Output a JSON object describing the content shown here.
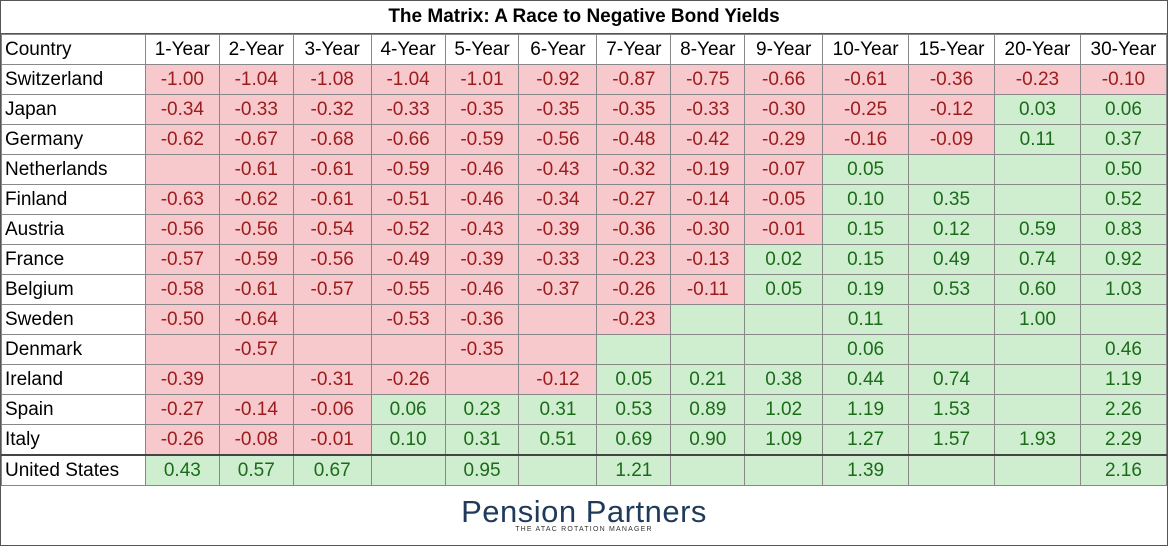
{
  "title": "The Matrix: A Race to Negative Bond Yields",
  "logo": {
    "name": "Pension Partners",
    "tagline": "THE ATAC ROTATION MANAGER"
  },
  "colors": {
    "negative_fill": "#f7c8cc",
    "negative_text": "#9b1c1c",
    "positive_fill": "#cfeecf",
    "positive_text": "#1b6b1b"
  },
  "chart_data": {
    "type": "table",
    "title": "The Matrix: A Race to Negative Bond Yields",
    "header": "Country",
    "columns": [
      "1-Year",
      "2-Year",
      "3-Year",
      "4-Year",
      "5-Year",
      "6-Year",
      "7-Year",
      "8-Year",
      "9-Year",
      "10-Year",
      "15-Year",
      "20-Year",
      "30-Year"
    ],
    "rows": [
      {
        "country": "Switzerland",
        "values": [
          "-1.00",
          "-1.04",
          "-1.08",
          "-1.04",
          "-1.01",
          "-0.92",
          "-0.87",
          "-0.75",
          "-0.66",
          "-0.61",
          "-0.36",
          "-0.23",
          "-0.10"
        ]
      },
      {
        "country": "Japan",
        "values": [
          "-0.34",
          "-0.33",
          "-0.32",
          "-0.33",
          "-0.35",
          "-0.35",
          "-0.35",
          "-0.33",
          "-0.30",
          "-0.25",
          "-0.12",
          "0.03",
          "0.06"
        ]
      },
      {
        "country": "Germany",
        "values": [
          "-0.62",
          "-0.67",
          "-0.68",
          "-0.66",
          "-0.59",
          "-0.56",
          "-0.48",
          "-0.42",
          "-0.29",
          "-0.16",
          "-0.09",
          "0.11",
          "0.37"
        ]
      },
      {
        "country": "Netherlands",
        "values": [
          null,
          "-0.61",
          "-0.61",
          "-0.59",
          "-0.46",
          "-0.43",
          "-0.32",
          "-0.19",
          "-0.07",
          "0.05",
          null,
          null,
          "0.50"
        ]
      },
      {
        "country": "Finland",
        "values": [
          "-0.63",
          "-0.62",
          "-0.61",
          "-0.51",
          "-0.46",
          "-0.34",
          "-0.27",
          "-0.14",
          "-0.05",
          "0.10",
          "0.35",
          null,
          "0.52"
        ]
      },
      {
        "country": "Austria",
        "values": [
          "-0.56",
          "-0.56",
          "-0.54",
          "-0.52",
          "-0.43",
          "-0.39",
          "-0.36",
          "-0.30",
          "-0.01",
          "0.15",
          "0.12",
          "0.59",
          "0.83"
        ]
      },
      {
        "country": "France",
        "values": [
          "-0.57",
          "-0.59",
          "-0.56",
          "-0.49",
          "-0.39",
          "-0.33",
          "-0.23",
          "-0.13",
          "0.02",
          "0.15",
          "0.49",
          "0.74",
          "0.92"
        ]
      },
      {
        "country": "Belgium",
        "values": [
          "-0.58",
          "-0.61",
          "-0.57",
          "-0.55",
          "-0.46",
          "-0.37",
          "-0.26",
          "-0.11",
          "0.05",
          "0.19",
          "0.53",
          "0.60",
          "1.03"
        ]
      },
      {
        "country": "Sweden",
        "values": [
          "-0.50",
          "-0.64",
          null,
          "-0.53",
          "-0.36",
          null,
          "-0.23",
          null,
          null,
          "0.11",
          null,
          "1.00",
          null
        ]
      },
      {
        "country": "Denmark",
        "values": [
          null,
          "-0.57",
          null,
          null,
          "-0.35",
          null,
          null,
          null,
          null,
          "0.06",
          null,
          null,
          "0.46"
        ]
      },
      {
        "country": "Ireland",
        "values": [
          "-0.39",
          null,
          "-0.31",
          "-0.26",
          null,
          "-0.12",
          "0.05",
          "0.21",
          "0.38",
          "0.44",
          "0.74",
          null,
          "1.19"
        ]
      },
      {
        "country": "Spain",
        "values": [
          "-0.27",
          "-0.14",
          "-0.06",
          "0.06",
          "0.23",
          "0.31",
          "0.53",
          "0.89",
          "1.02",
          "1.19",
          "1.53",
          null,
          "2.26"
        ]
      },
      {
        "country": "Italy",
        "values": [
          "-0.26",
          "-0.08",
          "-0.01",
          "0.10",
          "0.31",
          "0.51",
          "0.69",
          "0.90",
          "1.09",
          "1.27",
          "1.57",
          "1.93",
          "2.29"
        ]
      },
      {
        "country": "United States",
        "values": [
          "0.43",
          "0.57",
          "0.67",
          null,
          "0.95",
          null,
          "1.21",
          null,
          null,
          "1.39",
          null,
          null,
          "2.16"
        ]
      }
    ],
    "blank_cell_fill": [
      [
        null,
        null,
        null,
        null,
        null,
        null,
        null,
        null,
        null,
        null,
        null,
        null,
        null
      ],
      [
        null,
        null,
        null,
        null,
        null,
        null,
        null,
        null,
        null,
        null,
        null,
        null,
        null
      ],
      [
        null,
        null,
        null,
        null,
        null,
        null,
        null,
        null,
        null,
        null,
        null,
        null,
        null
      ],
      [
        "neg",
        null,
        null,
        null,
        null,
        null,
        null,
        null,
        null,
        null,
        "pos",
        "pos",
        null
      ],
      [
        null,
        null,
        null,
        null,
        null,
        null,
        null,
        null,
        null,
        null,
        null,
        "pos",
        null
      ],
      [
        null,
        null,
        null,
        null,
        null,
        null,
        null,
        null,
        null,
        null,
        null,
        null,
        null
      ],
      [
        null,
        null,
        null,
        null,
        null,
        null,
        null,
        null,
        null,
        null,
        null,
        null,
        null
      ],
      [
        null,
        null,
        null,
        null,
        null,
        null,
        null,
        null,
        null,
        null,
        null,
        null,
        null
      ],
      [
        null,
        null,
        "neg",
        null,
        null,
        "neg",
        null,
        "pos",
        "pos",
        null,
        "pos",
        null,
        "pos"
      ],
      [
        "neg",
        null,
        "neg",
        "neg",
        null,
        "neg",
        "pos",
        "pos",
        "pos",
        null,
        "pos",
        "pos",
        null
      ],
      [
        null,
        "neg",
        null,
        null,
        "neg",
        null,
        null,
        null,
        null,
        null,
        null,
        "pos",
        null
      ],
      [
        null,
        null,
        null,
        null,
        null,
        null,
        null,
        null,
        null,
        null,
        null,
        "pos",
        null
      ],
      [
        null,
        null,
        null,
        null,
        null,
        null,
        null,
        null,
        null,
        null,
        null,
        null,
        null
      ],
      [
        null,
        null,
        null,
        "pos",
        null,
        "pos",
        null,
        "pos",
        "pos",
        null,
        "pos",
        "pos",
        null
      ]
    ]
  }
}
